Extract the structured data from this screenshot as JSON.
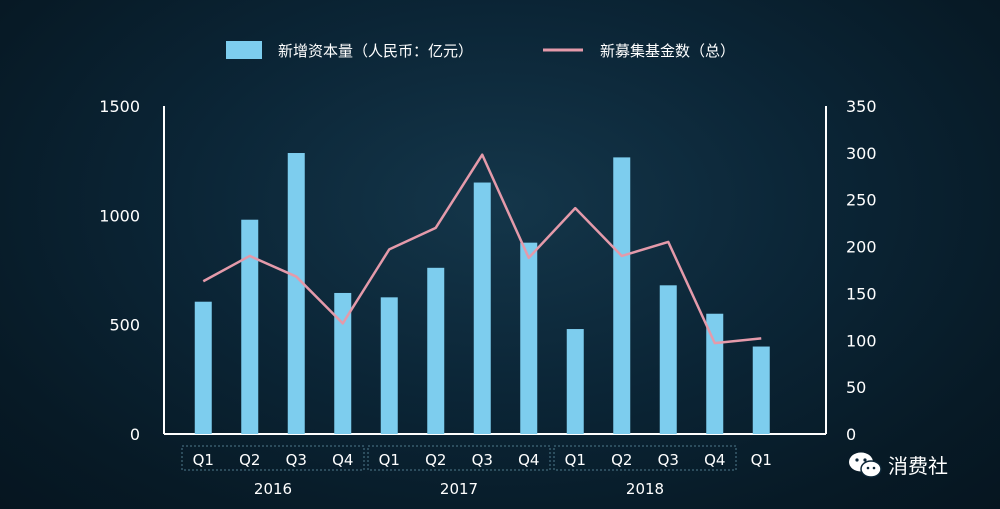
{
  "legend": {
    "bar_label": "新增资本量（人民币：亿元）",
    "line_label": "新募集基金数（总）"
  },
  "colors": {
    "bar": "#7dcdee",
    "line": "#e49aaa",
    "axis": "#ffffff",
    "group_box": "#4f7a8c"
  },
  "chart_data": {
    "type": "bar",
    "categories": [
      "Q1",
      "Q2",
      "Q3",
      "Q4",
      "Q1",
      "Q2",
      "Q3",
      "Q4",
      "Q1",
      "Q2",
      "Q3",
      "Q4",
      "Q1"
    ],
    "groups": [
      {
        "label": "2016",
        "start": 0,
        "end": 3
      },
      {
        "label": "2017",
        "start": 4,
        "end": 7
      },
      {
        "label": "2018",
        "start": 8,
        "end": 11
      }
    ],
    "series": [
      {
        "name": "新增资本量（人民币：亿元）",
        "type": "bar",
        "axis": "left",
        "values": [
          605,
          980,
          1285,
          645,
          625,
          760,
          1150,
          875,
          480,
          1265,
          680,
          550,
          400
        ]
      },
      {
        "name": "新募集基金数（总）",
        "type": "line",
        "axis": "right",
        "values": [
          163,
          190,
          168,
          118,
          197,
          220,
          298,
          188,
          241,
          190,
          205,
          97,
          102
        ]
      }
    ],
    "y_left": {
      "min": 0,
      "max": 1500,
      "ticks": [
        0,
        500,
        1000,
        1500
      ]
    },
    "y_right": {
      "min": 0,
      "max": 350,
      "ticks": [
        0,
        50,
        100,
        150,
        200,
        250,
        300,
        350
      ]
    }
  },
  "watermark": {
    "text": "消费社",
    "icon": "wechat-icon"
  }
}
